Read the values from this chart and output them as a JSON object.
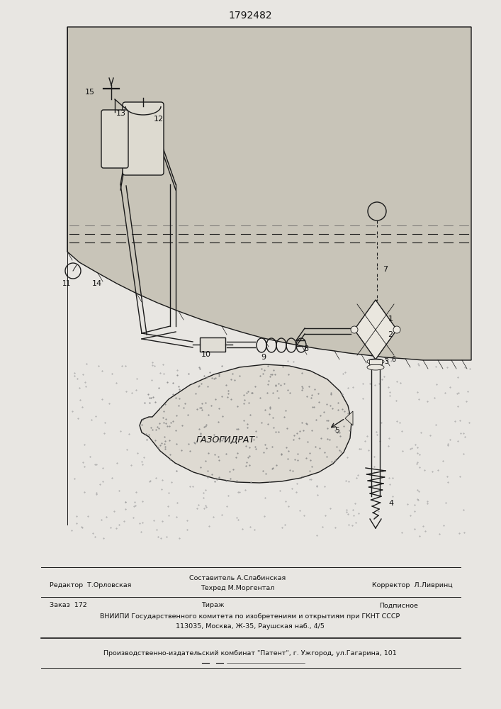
{
  "title": "1792482",
  "bg_color": "#e8e6e2",
  "paper_color": "#f0eeea",
  "line_color": "#1a1a1a",
  "text_color": "#111111",
  "gazogidrat_label": "ГАЗОГИДРАТ",
  "footer_editor": "Редактор  Т.Орловская",
  "footer_comp_top": "Составитель А.Слабинская",
  "footer_comp_bot": "Техред М.Моргентал",
  "footer_corr": "Корректор  Л.Ливринц",
  "footer_order": "Заказ  172",
  "footer_circ": "Тираж",
  "footer_sub": "Подписное",
  "footer_org": "ВНИИПИ Государственного комитета по изобретениям и открытиям при ГКНТ СССР",
  "footer_addr": "113035, Москва, Ж-35, Раушская наб., 4/5",
  "footer_plant": "Производственно-издательский комбинат \"Патент\", г. Ужгород, ул.Гагарина, 101"
}
